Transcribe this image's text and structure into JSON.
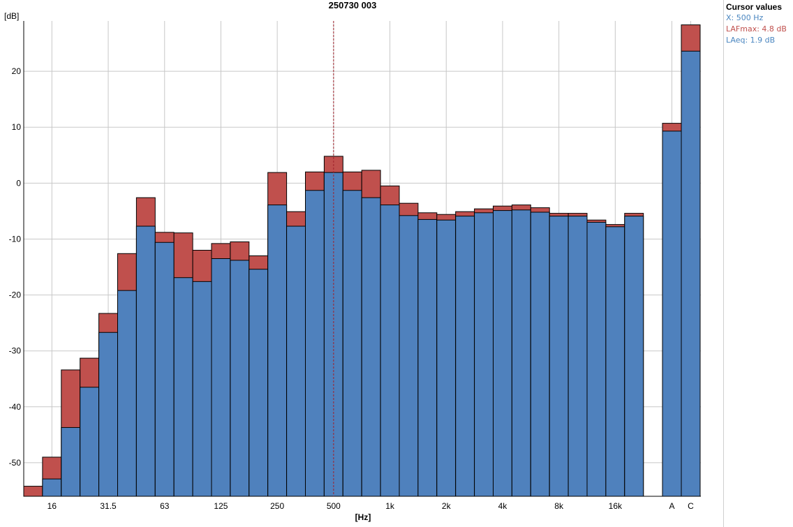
{
  "chart_data": {
    "type": "bar",
    "title": "250730 003",
    "ylabel": "[dB]",
    "xlabel": "[Hz]",
    "ylim": [
      -56,
      29
    ],
    "y_ticks": [
      20,
      10,
      0,
      -10,
      -20,
      -30,
      -40,
      -50
    ],
    "grid": true,
    "stacked_overlay": true,
    "bands": [
      "12.5",
      "16",
      "20",
      "25",
      "31.5",
      "40",
      "50",
      "63",
      "80",
      "100",
      "125",
      "160",
      "200",
      "250",
      "315",
      "400",
      "500",
      "630",
      "800",
      "1k",
      "1.25k",
      "1.6k",
      "2k",
      "2.5k",
      "3.15k",
      "4k",
      "5k",
      "6.3k",
      "8k",
      "10k",
      "12.5k",
      "16k",
      "20k"
    ],
    "x_tick_labels": [
      "16",
      "31.5",
      "63",
      "125",
      "250",
      "500",
      "1k",
      "2k",
      "4k",
      "8k",
      "16k"
    ],
    "broadband_labels": [
      "A",
      "C"
    ],
    "series": [
      {
        "name": "LAFmax",
        "color": "#c0504d",
        "values": [
          -54.2,
          -49.0,
          -33.4,
          -31.3,
          -23.3,
          -12.6,
          -2.6,
          -8.8,
          -8.9,
          -12.0,
          -10.8,
          -10.5,
          -13.0,
          1.9,
          -5.1,
          2.0,
          4.8,
          2.0,
          2.3,
          -0.5,
          -3.6,
          -5.3,
          -5.6,
          -5.1,
          -4.6,
          -4.1,
          -3.9,
          -4.4,
          -5.4,
          -5.4,
          -6.6,
          -7.4,
          -5.4
        ],
        "broadband": [
          10.7,
          28.3
        ]
      },
      {
        "name": "LAeq",
        "color": "#4f81bd",
        "values": [
          null,
          -52.9,
          -43.7,
          -36.5,
          -26.7,
          -19.2,
          -7.7,
          -10.6,
          -16.9,
          -17.6,
          -13.5,
          -13.8,
          -15.4,
          -3.9,
          -7.7,
          -1.3,
          1.9,
          -1.3,
          -2.6,
          -3.9,
          -5.8,
          -6.5,
          -6.6,
          -5.9,
          -5.3,
          -4.9,
          -4.8,
          -5.2,
          -5.9,
          -5.9,
          -7.0,
          -7.8,
          -5.9
        ],
        "broadband": [
          9.3,
          23.6
        ]
      }
    ],
    "cursor": {
      "band": "500"
    }
  },
  "cursor_values": {
    "title": "Cursor values",
    "x": "X: 500 Hz",
    "lafmax": "LAFmax: 4.8 dB",
    "laeq": "LAeq: 1.9 dB"
  },
  "colors": {
    "lafmax": "#c0504d",
    "laeq": "#4f81bd",
    "grid": "#c8c8c8"
  }
}
